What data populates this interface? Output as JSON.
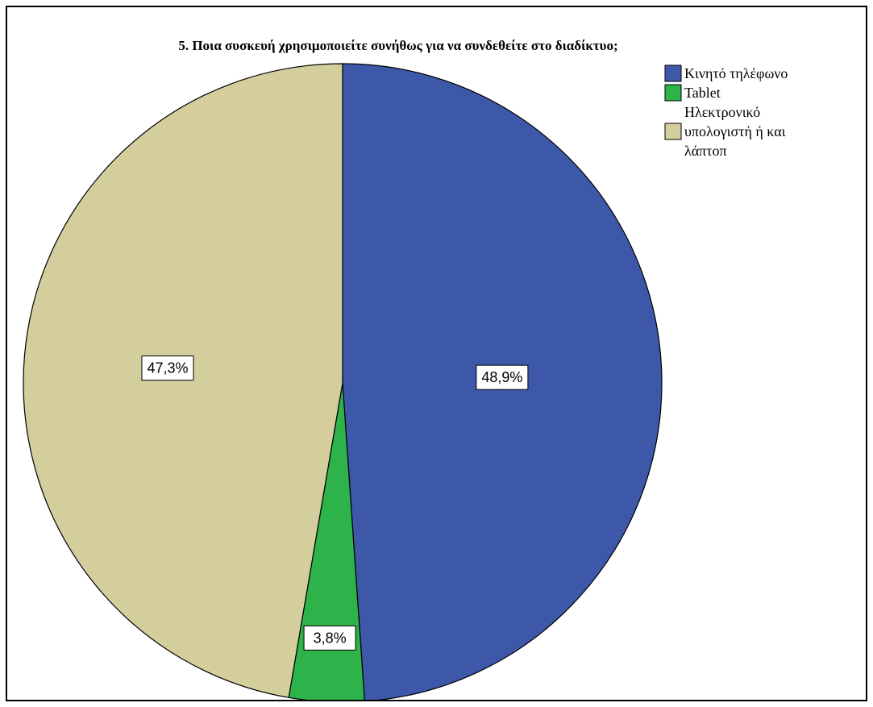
{
  "chart_data": {
    "type": "pie",
    "title": "5. Ποια συσκευή χρησιμοποιείτε συνήθως για να συνδεθείτε στο διαδίκτυο;",
    "slices": [
      {
        "label_lines": [
          "Κινητό τηλέφωνο"
        ],
        "value": 48.9,
        "display": "48,9%",
        "color": "#3e58a9"
      },
      {
        "label_lines": [
          "Tablet"
        ],
        "value": 3.8,
        "display": "3,8%",
        "color": "#2db34a"
      },
      {
        "label_lines": [
          "Ηλεκτρονικό",
          "υπολογιστή ή και",
          "λάπτοπ"
        ],
        "value": 47.3,
        "display": "47,3%",
        "color": "#d3ce9c"
      }
    ],
    "legend_position": "top-right",
    "start_angle_deg": 0,
    "direction": "clockwise"
  }
}
